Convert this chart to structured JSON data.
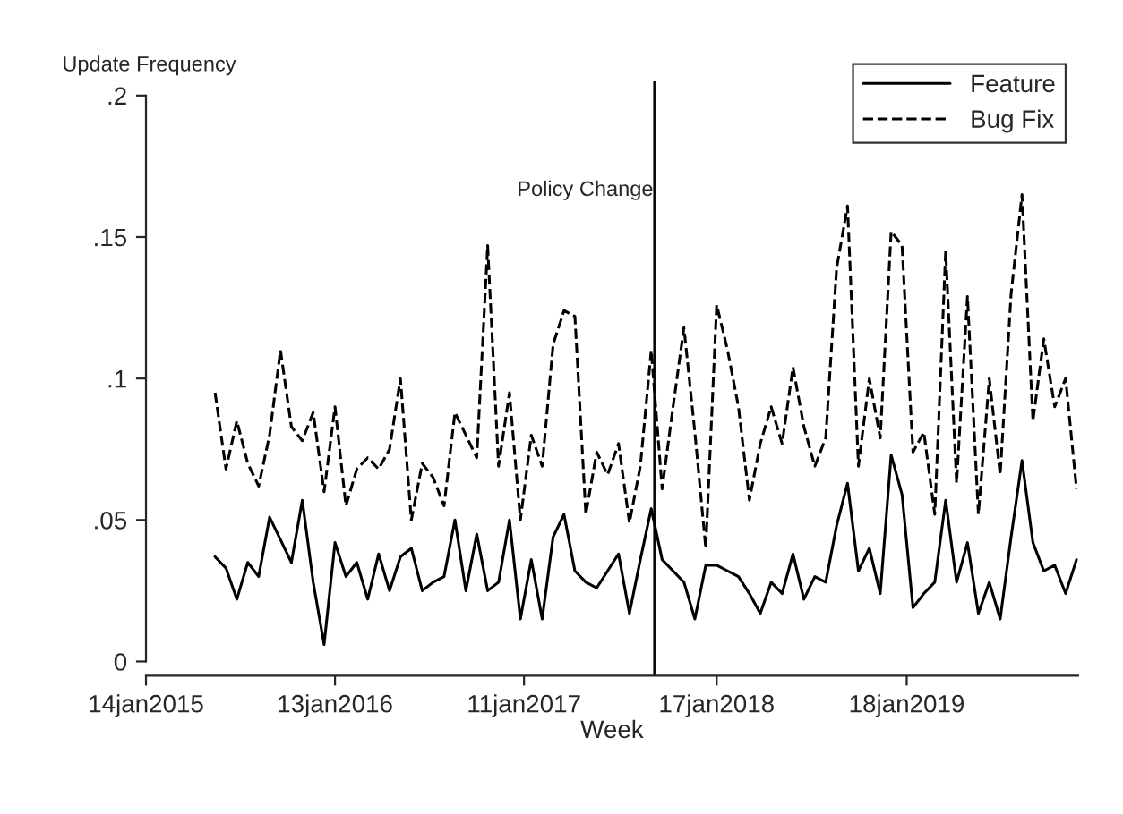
{
  "chart_data": {
    "type": "line",
    "xlabel": "Week",
    "ylabel": "Update Frequency",
    "x": [
      "2015-05-27",
      "2015-06-17",
      "2015-07-08",
      "2015-07-29",
      "2015-08-19",
      "2015-09-09",
      "2015-09-30",
      "2015-10-21",
      "2015-11-11",
      "2015-12-02",
      "2015-12-23",
      "2016-01-13",
      "2016-02-03",
      "2016-02-24",
      "2016-03-16",
      "2016-04-06",
      "2016-04-27",
      "2016-05-18",
      "2016-06-08",
      "2016-06-29",
      "2016-07-20",
      "2016-08-10",
      "2016-08-31",
      "2016-09-21",
      "2016-10-12",
      "2016-11-02",
      "2016-11-23",
      "2016-12-14",
      "2017-01-04",
      "2017-01-25",
      "2017-02-15",
      "2017-03-08",
      "2017-03-29",
      "2017-04-19",
      "2017-05-10",
      "2017-05-31",
      "2017-06-21",
      "2017-07-12",
      "2017-08-02",
      "2017-08-23",
      "2017-09-13",
      "2017-10-04",
      "2017-10-25",
      "2017-11-15",
      "2017-12-06",
      "2017-12-27",
      "2018-01-17",
      "2018-02-07",
      "2018-02-28",
      "2018-03-21",
      "2018-04-11",
      "2018-05-02",
      "2018-05-23",
      "2018-06-13",
      "2018-07-04",
      "2018-07-25",
      "2018-08-15",
      "2018-09-05",
      "2018-09-26",
      "2018-10-17",
      "2018-11-07",
      "2018-11-28",
      "2018-12-19",
      "2019-01-09",
      "2019-01-30",
      "2019-02-20",
      "2019-03-13",
      "2019-04-03",
      "2019-04-24",
      "2019-05-15",
      "2019-06-05",
      "2019-06-26",
      "2019-07-17",
      "2019-08-07",
      "2019-08-28",
      "2019-09-18",
      "2019-10-09",
      "2019-10-30",
      "2019-11-20",
      "2019-12-11"
    ],
    "series": [
      {
        "name": "Feature",
        "color": "#000000",
        "line_style": "solid",
        "values": [
          0.037,
          0.033,
          0.022,
          0.035,
          0.03,
          0.051,
          0.043,
          0.035,
          0.057,
          0.028,
          0.006,
          0.042,
          0.03,
          0.035,
          0.022,
          0.038,
          0.025,
          0.037,
          0.04,
          0.025,
          0.028,
          0.03,
          0.05,
          0.025,
          0.045,
          0.025,
          0.028,
          0.05,
          0.015,
          0.036,
          0.015,
          0.044,
          0.052,
          0.032,
          0.028,
          0.026,
          0.032,
          0.038,
          0.017,
          0.036,
          0.054,
          0.036,
          0.032,
          0.028,
          0.015,
          0.034,
          0.034,
          0.032,
          0.03,
          0.024,
          0.017,
          0.028,
          0.024,
          0.038,
          0.022,
          0.03,
          0.028,
          0.048,
          0.063,
          0.032,
          0.04,
          0.024,
          0.073,
          0.059,
          0.019,
          0.024,
          0.028,
          0.057,
          0.028,
          0.042,
          0.017,
          0.028,
          0.015,
          0.044,
          0.071,
          0.042,
          0.032,
          0.034,
          0.024,
          0.036
        ]
      },
      {
        "name": "Bug Fix",
        "color": "#000000",
        "line_style": "dashed",
        "values": [
          0.095,
          0.068,
          0.085,
          0.07,
          0.062,
          0.08,
          0.11,
          0.083,
          0.078,
          0.088,
          0.06,
          0.09,
          0.055,
          0.068,
          0.072,
          0.068,
          0.075,
          0.1,
          0.05,
          0.07,
          0.065,
          0.055,
          0.088,
          0.08,
          0.072,
          0.147,
          0.069,
          0.095,
          0.05,
          0.08,
          0.069,
          0.112,
          0.124,
          0.122,
          0.052,
          0.074,
          0.066,
          0.077,
          0.049,
          0.069,
          0.11,
          0.061,
          0.09,
          0.118,
          0.081,
          0.04,
          0.126,
          0.11,
          0.09,
          0.057,
          0.077,
          0.09,
          0.077,
          0.104,
          0.083,
          0.069,
          0.079,
          0.139,
          0.161,
          0.069,
          0.1,
          0.079,
          0.152,
          0.147,
          0.074,
          0.081,
          0.052,
          0.145,
          0.063,
          0.129,
          0.052,
          0.1,
          0.066,
          0.13,
          0.165,
          0.085,
          0.114,
          0.09,
          0.1,
          0.061
        ]
      }
    ],
    "xlim": [
      "2015-01-14",
      "2019-12-14"
    ],
    "xticks": [
      {
        "value": "2015-01-14",
        "label": "14jan2015"
      },
      {
        "value": "2016-01-13",
        "label": "13jan2016"
      },
      {
        "value": "2017-01-11",
        "label": "11jan2017"
      },
      {
        "value": "2018-01-17",
        "label": "17jan2018"
      },
      {
        "value": "2019-01-18",
        "label": "18jan2019"
      }
    ],
    "ylim": [
      -0.005,
      0.205
    ],
    "yticks": [
      {
        "value": 0,
        "label": "0"
      },
      {
        "value": 0.05,
        "label": ".05"
      },
      {
        "value": 0.1,
        "label": ".1"
      },
      {
        "value": 0.15,
        "label": ".15"
      },
      {
        "value": 0.2,
        "label": ".2"
      }
    ],
    "ref_lines": [
      {
        "axis": "x",
        "value": "2017-09-19",
        "label": "Policy Change",
        "color": "#000000",
        "line_style": "solid"
      }
    ],
    "grid": false,
    "legend": "top right"
  }
}
